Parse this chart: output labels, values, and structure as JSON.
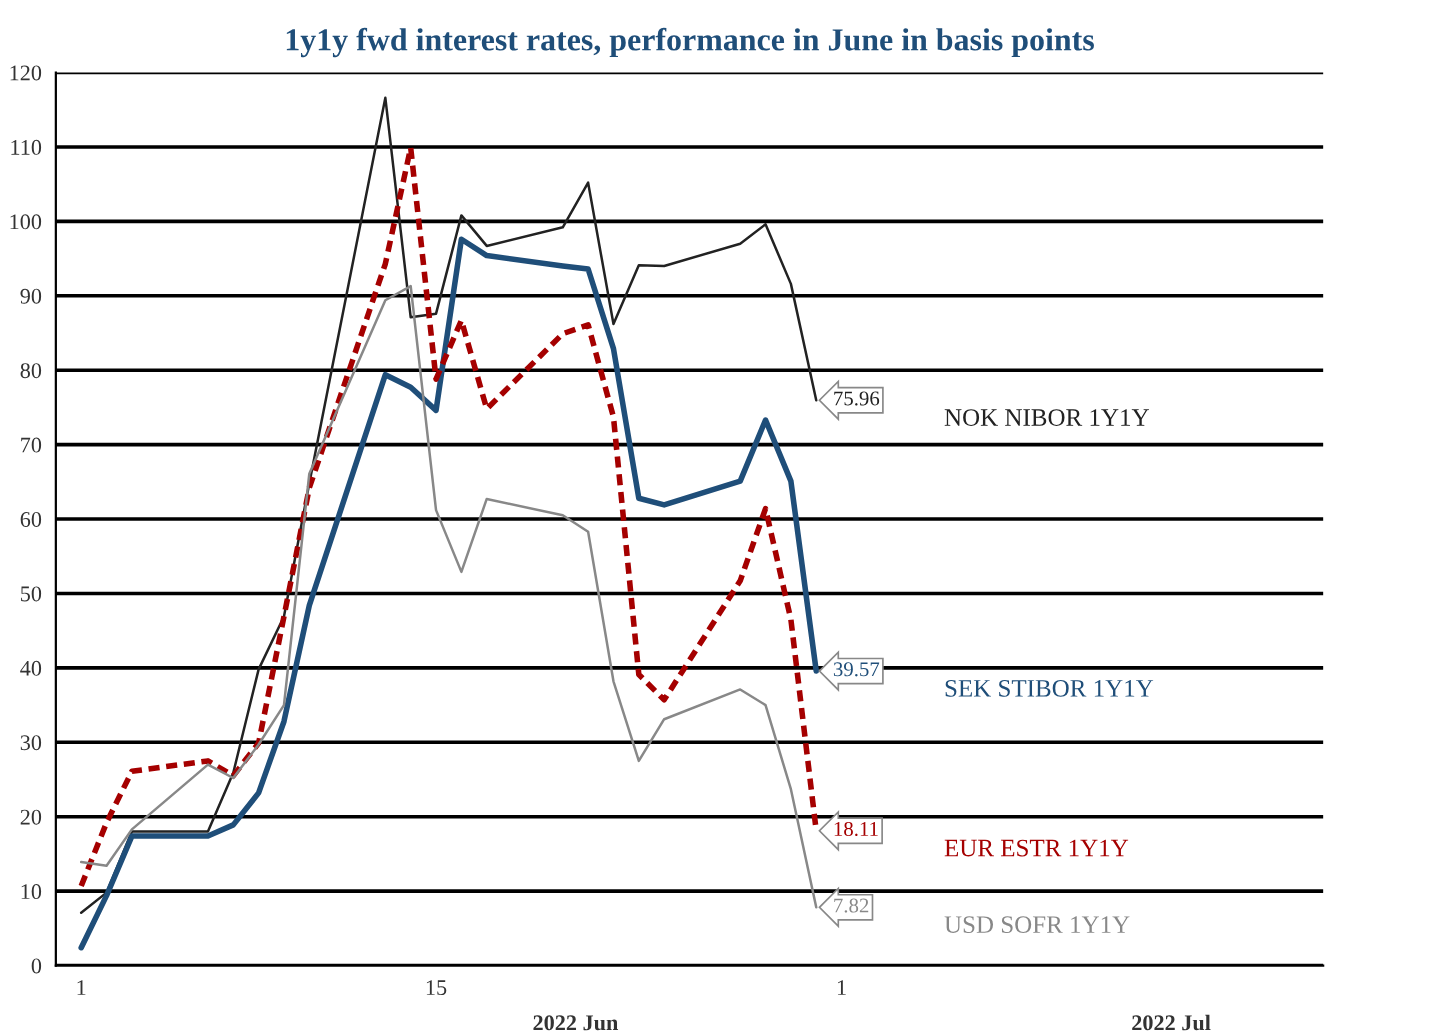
{
  "chart_data": {
    "type": "line",
    "title": "1y1y fwd interest rates, performance in June in basis points",
    "x": [
      "2022-06-01",
      "2022-06-02",
      "2022-06-03",
      "2022-06-06",
      "2022-06-07",
      "2022-06-08",
      "2022-06-09",
      "2022-06-10",
      "2022-06-13",
      "2022-06-14",
      "2022-06-15",
      "2022-06-16",
      "2022-06-17",
      "2022-06-20",
      "2022-06-21",
      "2022-06-22",
      "2022-06-23",
      "2022-06-24",
      "2022-06-27",
      "2022-06-28",
      "2022-06-29",
      "2022-06-30"
    ],
    "series": [
      {
        "name": "NOK NIBOR 1Y1Y",
        "color": "#222222",
        "values": [
          7.1,
          9.8,
          18,
          18,
          25.9,
          39.8,
          46.9,
          64.8,
          116.6,
          87.1,
          87.6,
          100.8,
          96.7,
          99.2,
          105.2,
          86.2,
          94.1,
          94.0,
          97.0,
          99.6,
          91.6,
          75.96
        ],
        "value_labels": [
          null,
          null,
          null,
          null,
          null,
          null,
          null,
          null,
          null,
          null,
          null,
          null,
          null,
          null,
          null,
          null,
          null,
          null,
          null,
          null,
          null,
          "75.96"
        ]
      },
      {
        "name": "SEK STIBOR 1Y1Y",
        "color": "#1f4e79",
        "values": [
          2.4,
          9.4,
          17.4,
          17.4,
          18.9,
          23.2,
          32.8,
          48.4,
          79.4,
          77.7,
          74.6,
          97.6,
          95.4,
          94.0,
          93.6,
          82.9,
          62.8,
          61.9,
          65.1,
          73.3,
          65.1,
          39.57
        ],
        "value_labels": [
          null,
          null,
          null,
          null,
          null,
          null,
          null,
          null,
          null,
          null,
          null,
          null,
          null,
          null,
          null,
          null,
          null,
          null,
          null,
          null,
          null,
          "39.57"
        ]
      },
      {
        "name": "EUR ESTR 1Y1Y",
        "color": "#a50000",
        "line_style": "dashed",
        "values": [
          10.7,
          19.2,
          26.1,
          27.5,
          25.5,
          29.9,
          46.9,
          64.2,
          94.3,
          109.9,
          78.8,
          86.7,
          74.8,
          84.9,
          86.1,
          73.7,
          39.1,
          35.7,
          51.7,
          61.4,
          46.5,
          18.11
        ],
        "value_labels": [
          null,
          null,
          null,
          null,
          null,
          null,
          null,
          null,
          null,
          null,
          null,
          null,
          null,
          null,
          null,
          null,
          null,
          null,
          null,
          null,
          null,
          "18.11"
        ]
      },
      {
        "name": "USD SOFR 1Y1Y",
        "color": "#888888",
        "values": [
          13.9,
          13.4,
          18.3,
          27.0,
          25.2,
          29.7,
          35.0,
          66.1,
          89.4,
          91.3,
          61.2,
          52.9,
          62.7,
          60.5,
          58.3,
          38.2,
          27.5,
          33.1,
          37.1,
          35.0,
          23.7,
          7.82
        ],
        "value_labels": [
          null,
          null,
          null,
          null,
          null,
          null,
          null,
          null,
          null,
          null,
          null,
          null,
          null,
          null,
          null,
          null,
          null,
          null,
          null,
          null,
          null,
          "7.82"
        ]
      }
    ],
    "xlim": [
      "2022-05-31",
      "2022-07-20"
    ],
    "xticks": [
      {
        "value": "2022-06-01",
        "label": "1"
      },
      {
        "value": "2022-06-15",
        "label": "15"
      },
      {
        "value": "2022-07-01",
        "label": "1"
      }
    ],
    "ylim": [
      0,
      120
    ],
    "yticks": [
      0,
      10,
      20,
      30,
      40,
      50,
      60,
      70,
      80,
      90,
      100,
      110,
      120
    ],
    "annotations": [
      "2022 Jun",
      "2022 Jul"
    ],
    "grid": "y",
    "legend": false,
    "line_style": "solid",
    "marker": "none"
  }
}
